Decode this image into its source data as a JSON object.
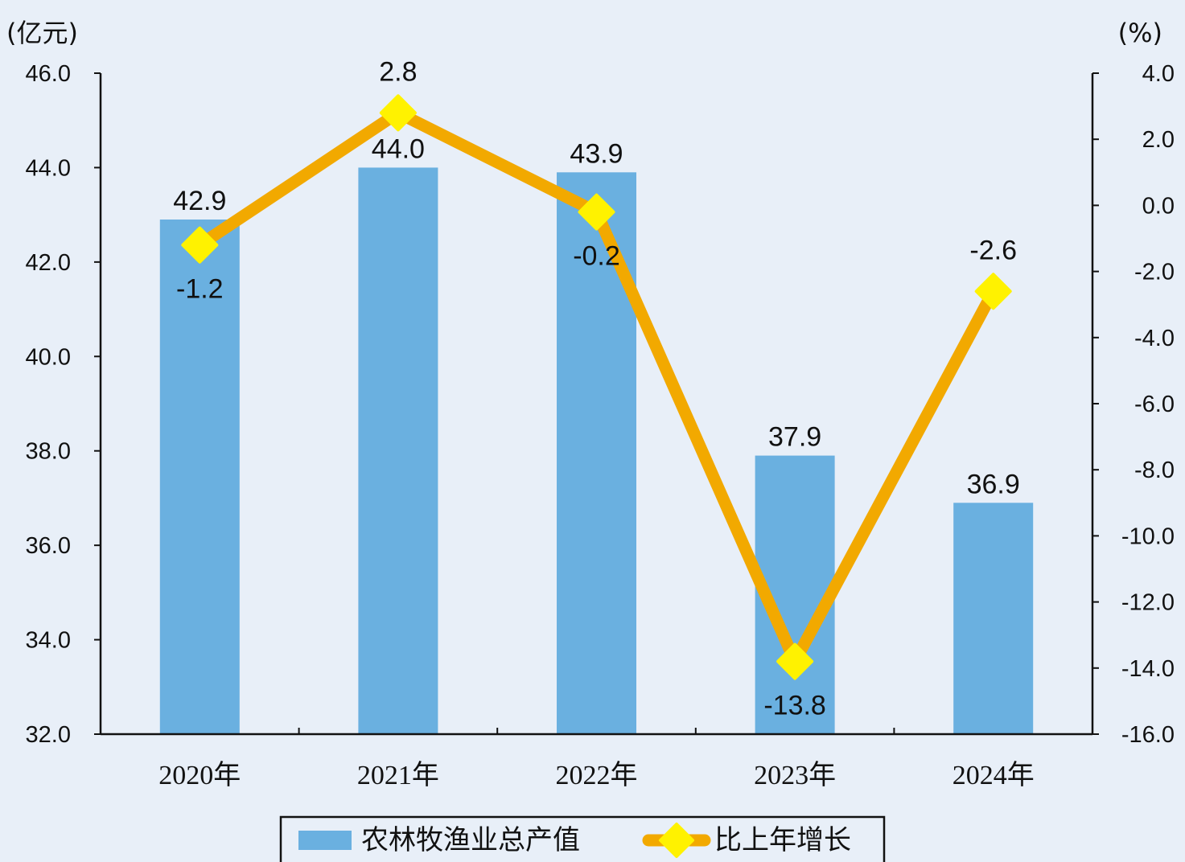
{
  "chart_data": {
    "type": "bar+line",
    "categories": [
      "2020年",
      "2021年",
      "2022年",
      "2023年",
      "2024年"
    ],
    "series": [
      {
        "name": "农林牧渔业总产值",
        "type": "bar",
        "axis": "left",
        "color": "#6ab0e0",
        "values": [
          42.9,
          44.0,
          43.9,
          37.9,
          36.9
        ],
        "labels": [
          "42.9",
          "44.0",
          "43.9",
          "37.9",
          "36.9"
        ]
      },
      {
        "name": "比上年增长",
        "type": "line",
        "axis": "right",
        "color": "#f2a900",
        "marker_color": "#fff200",
        "values": [
          -1.2,
          2.8,
          -0.2,
          -13.8,
          -2.6
        ],
        "labels": [
          "-1.2",
          "2.8",
          "-0.2",
          "-13.8",
          "-2.6"
        ]
      }
    ],
    "y_left": {
      "unit": "(亿元)",
      "ylim": [
        32.0,
        46.0
      ],
      "ticks": [
        "32.0",
        "34.0",
        "36.0",
        "38.0",
        "40.0",
        "42.0",
        "44.0",
        "46.0"
      ]
    },
    "y_right": {
      "unit": "(%)",
      "ylim": [
        -16.0,
        4.0
      ],
      "ticks": [
        "-16.0",
        "-14.0",
        "-12.0",
        "-10.0",
        "-8.0",
        "-6.0",
        "-4.0",
        "-2.0",
        "0.0",
        "2.0",
        "4.0"
      ]
    },
    "grid": false,
    "legend_position": "bottom-center"
  }
}
